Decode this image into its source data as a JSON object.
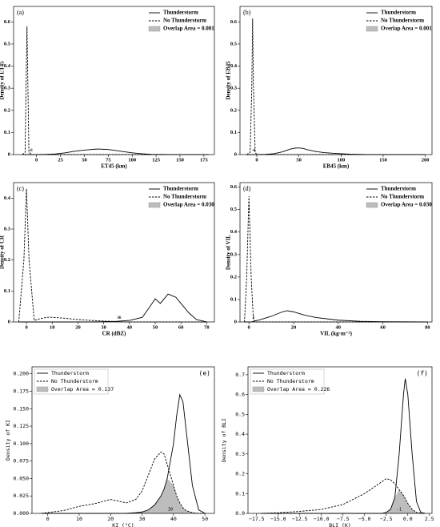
{
  "chart_data": [
    {
      "type": "line",
      "title": "(a)",
      "xlabel": "ET45 (km)",
      "ylabel": "Density of ET45",
      "x": [
        -15,
        -12,
        -11,
        -10,
        -9,
        -8,
        -5,
        0,
        10,
        20,
        30,
        40,
        50,
        55,
        60,
        65,
        70,
        75,
        80,
        90,
        100,
        110,
        120,
        140,
        160,
        180
      ],
      "series": [
        {
          "name": "Thunderstorm",
          "color": "#000000",
          "dash": false,
          "values": [
            0,
            0,
            0,
            0,
            0,
            0,
            0,
            0,
            0.001,
            0.003,
            0.008,
            0.015,
            0.02,
            0.022,
            0.024,
            0.025,
            0.024,
            0.023,
            0.02,
            0.014,
            0.008,
            0.004,
            0.001,
            0,
            0,
            0
          ]
        },
        {
          "name": "No Thunderstorm",
          "color": "#000000",
          "dash": true,
          "values": [
            0,
            0.01,
            0.3,
            0.58,
            0.3,
            0.01,
            0,
            0,
            0,
            0,
            0,
            0,
            0,
            0,
            0,
            0,
            0,
            0,
            0,
            0,
            0,
            0,
            0,
            0,
            0,
            0
          ]
        }
      ],
      "overlap_label": "Overlap Area = 0.001",
      "overlap_color": "#bdbdbd",
      "threshold": -6,
      "xlim": [
        -24,
        186
      ],
      "ylim": [
        0,
        0.67
      ],
      "xticks": [
        0,
        25,
        50,
        75,
        100,
        125,
        150,
        175
      ],
      "yticks": [
        0,
        0.1,
        0.2,
        0.3,
        0.4,
        0.5,
        0.6
      ],
      "legend": "upper right"
    },
    {
      "type": "line",
      "title": "(b)",
      "xlabel": "EB45 (km)",
      "ylabel": "Density of EB45",
      "x": [
        -12,
        -8,
        -6,
        -5,
        -4,
        -2,
        0,
        10,
        20,
        30,
        40,
        45,
        50,
        55,
        60,
        70,
        80,
        90,
        100,
        110,
        130,
        160,
        200
      ],
      "series": [
        {
          "name": "Thunderstorm",
          "color": "#000000",
          "dash": false,
          "values": [
            0,
            0,
            0,
            0,
            0,
            0,
            0,
            0.001,
            0.004,
            0.012,
            0.025,
            0.029,
            0.03,
            0.028,
            0.022,
            0.014,
            0.009,
            0.006,
            0.004,
            0.002,
            0,
            0,
            0
          ]
        },
        {
          "name": "No Thunderstorm",
          "color": "#000000",
          "dash": true,
          "values": [
            0,
            0.01,
            0.3,
            0.615,
            0.3,
            0.01,
            0,
            0,
            0,
            0,
            0,
            0,
            0,
            0,
            0,
            0,
            0,
            0,
            0,
            0,
            0,
            0,
            0
          ]
        }
      ],
      "overlap_label": "Overlap Area = 0.001",
      "overlap_color": "#bdbdbd",
      "threshold": -4,
      "xlim": [
        -20,
        208
      ],
      "ylim": [
        0,
        0.67
      ],
      "xticks": [
        0,
        50,
        100,
        150,
        200
      ],
      "yticks": [
        0,
        0.1,
        0.2,
        0.3,
        0.4,
        0.5,
        0.6
      ],
      "legend": "upper right"
    },
    {
      "type": "line",
      "title": "(c)",
      "xlabel": "CR (dBZ)",
      "ylabel": "Density of CR",
      "x": [
        -3,
        -1,
        0,
        1,
        3,
        5,
        8,
        10,
        15,
        20,
        25,
        30,
        35,
        40,
        45,
        48,
        50,
        52,
        55,
        58,
        60,
        63,
        66,
        70
      ],
      "series": [
        {
          "name": "Thunderstorm",
          "color": "#000000",
          "dash": false,
          "values": [
            0,
            0,
            0,
            0,
            0,
            0,
            0,
            0,
            0,
            0,
            0,
            0.001,
            0.002,
            0.005,
            0.015,
            0.05,
            0.075,
            0.06,
            0.09,
            0.08,
            0.06,
            0.03,
            0.008,
            0
          ]
        },
        {
          "name": "No Thunderstorm",
          "color": "#000000",
          "dash": true,
          "values": [
            0,
            0.2,
            0.43,
            0.2,
            0.005,
            0.01,
            0.015,
            0.015,
            0.012,
            0.008,
            0.005,
            0.003,
            0.001,
            0,
            0,
            0,
            0,
            0,
            0,
            0,
            0,
            0,
            0,
            0
          ]
        }
      ],
      "overlap_label": "Overlap Area = 0.030",
      "overlap_color": "#bdbdbd",
      "threshold": 36,
      "xlim": [
        -5,
        73
      ],
      "ylim": [
        0,
        0.45
      ],
      "xticks": [
        0,
        10,
        20,
        30,
        40,
        50,
        60,
        70
      ],
      "yticks": [
        0,
        0.1,
        0.2,
        0.3,
        0.4
      ],
      "legend": "upper right"
    },
    {
      "type": "line",
      "title": "(d)",
      "xlabel": "VIL (kg·m⁻²)",
      "ylabel": "Density of VIL",
      "x": [
        -2,
        -1,
        0,
        1,
        2,
        3,
        5,
        10,
        15,
        17,
        20,
        25,
        30,
        40,
        50,
        60,
        80
      ],
      "series": [
        {
          "name": "Thunderstorm",
          "color": "#000000",
          "dash": false,
          "values": [
            0,
            0,
            0,
            0,
            0.002,
            0.005,
            0.01,
            0.025,
            0.045,
            0.05,
            0.045,
            0.03,
            0.02,
            0.008,
            0.003,
            0.001,
            0
          ]
        },
        {
          "name": "No Thunderstorm",
          "color": "#000000",
          "dash": true,
          "values": [
            0,
            0.2,
            0.56,
            0.2,
            0.01,
            0,
            0,
            0,
            0,
            0,
            0,
            0,
            0,
            0,
            0,
            0,
            0
          ]
        }
      ],
      "overlap_label": "Overlap Area = 0.030",
      "overlap_color": "#bdbdbd",
      "threshold": 2,
      "xlim": [
        -4,
        82
      ],
      "ylim": [
        0,
        0.62
      ],
      "xticks": [
        0,
        20,
        40,
        60,
        80
      ],
      "yticks": [
        0,
        0.1,
        0.2,
        0.3,
        0.4,
        0.5,
        0.6
      ],
      "legend": "upper right"
    },
    {
      "type": "line",
      "title": "(e)",
      "xlabel": "KI (°C)",
      "ylabel": "Density of KI",
      "x": [
        -2,
        5,
        10,
        15,
        20,
        25,
        28,
        30,
        32,
        34,
        36,
        37,
        38,
        40,
        41,
        42,
        43,
        44,
        46,
        48,
        50
      ],
      "series": [
        {
          "name": "Thunderstorm",
          "color": "#000000",
          "dash": false,
          "values": [
            0,
            0,
            0,
            0,
            0,
            0,
            0.001,
            0.002,
            0.005,
            0.012,
            0.025,
            0.035,
            0.05,
            0.1,
            0.14,
            0.17,
            0.16,
            0.12,
            0.04,
            0.005,
            0
          ]
        },
        {
          "name": "No Thunderstorm",
          "color": "#000000",
          "dash": true,
          "values": [
            0,
            0.004,
            0.01,
            0.014,
            0.02,
            0.015,
            0.02,
            0.032,
            0.055,
            0.078,
            0.088,
            0.085,
            0.07,
            0.04,
            0.025,
            0.015,
            0.008,
            0.004,
            0.001,
            0,
            0
          ]
        }
      ],
      "overlap_label": "Overlap Area = 0.137",
      "overlap_color": "#bdbdbd",
      "threshold": 39,
      "xlim": [
        -5,
        53
      ],
      "ylim": [
        0,
        0.21
      ],
      "xticks": [
        0,
        10,
        20,
        30,
        40,
        50
      ],
      "yticks": [
        {
          "value": 0,
          "label": "0.000"
        },
        0.025,
        {
          "value": 0.05,
          "label": "0.050"
        },
        0.075,
        {
          "value": 0.1,
          "label": "0.100"
        },
        0.125,
        {
          "value": 0.15,
          "label": "0.150"
        },
        0.175,
        {
          "value": 0.2,
          "label": "0.200"
        }
      ],
      "legend": "upper left"
    },
    {
      "type": "line",
      "title": "(f)",
      "xlabel": "BLI (K)",
      "ylabel": "Density of BLI",
      "x": [
        -17,
        -15,
        -12.5,
        -10,
        -7.5,
        -5,
        -4,
        -3,
        -2.5,
        -2,
        -1.5,
        -1,
        -0.5,
        -0.3,
        0,
        0.5,
        1,
        1.5,
        2
      ],
      "series": [
        {
          "name": "Thunderstorm",
          "color": "#000000",
          "dash": false,
          "values": [
            0,
            0,
            0,
            0,
            0,
            0,
            0,
            0,
            0.005,
            0.02,
            0.08,
            0.3,
            0.6,
            0.68,
            0.6,
            0.3,
            0.06,
            0.005,
            0
          ]
        },
        {
          "name": "No Thunderstorm",
          "color": "#000000",
          "dash": true,
          "values": [
            0,
            0.003,
            0.01,
            0.02,
            0.045,
            0.1,
            0.13,
            0.16,
            0.175,
            0.17,
            0.15,
            0.12,
            0.09,
            0.075,
            0.05,
            0.02,
            0.005,
            0.001,
            0
          ]
        }
      ],
      "overlap_label": "Overlap Area = 0.226",
      "overlap_color": "#bdbdbd",
      "threshold": -1,
      "xlim": [
        -18.5,
        2.8
      ],
      "ylim": [
        0,
        0.74
      ],
      "xticks": [
        {
          "value": -17.5,
          "label": "−17.5"
        },
        {
          "value": -15,
          "label": "−15.0"
        },
        {
          "value": -12.5,
          "label": "−12.5"
        },
        {
          "value": -10,
          "label": "−10.0"
        },
        {
          "value": -7.5,
          "label": "−7.5"
        },
        {
          "value": -5,
          "label": "−5.0"
        },
        {
          "value": -2.5,
          "label": "−2.5"
        },
        {
          "value": 0,
          "label": "0.0"
        },
        2.5
      ],
      "yticks": [
        {
          "value": 0,
          "label": "0.0"
        },
        0.1,
        0.2,
        0.3,
        0.4,
        0.5,
        0.6,
        0.7
      ],
      "legend": "upper left"
    }
  ]
}
